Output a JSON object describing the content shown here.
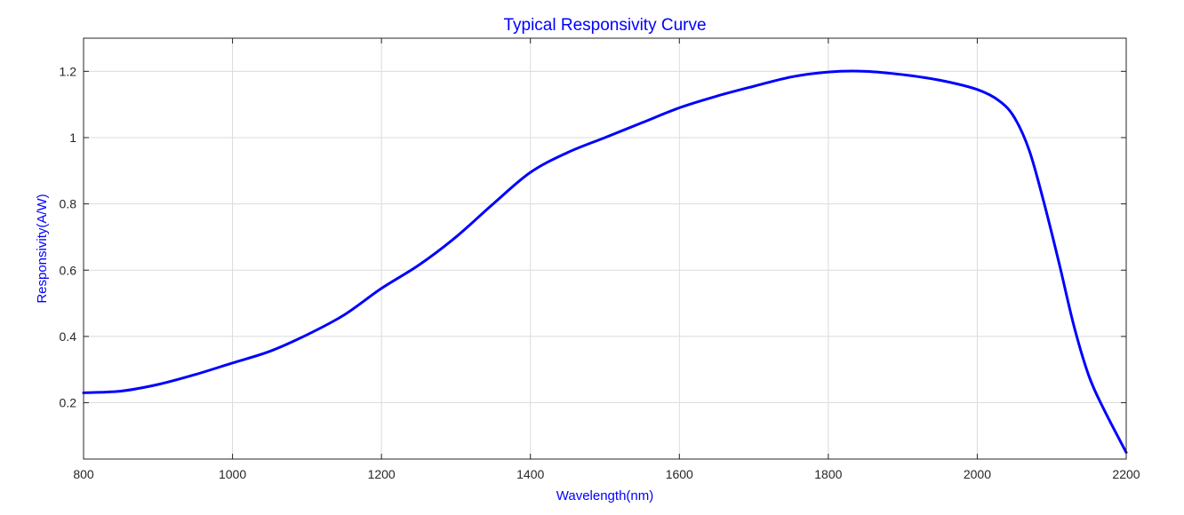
{
  "chart_data": {
    "type": "line",
    "title": "Typical Responsivity Curve",
    "xlabel": "Wavelength(nm)",
    "ylabel": "Responsivity(A/W)",
    "xlim": [
      800,
      2200
    ],
    "ylim": [
      0.03,
      1.3
    ],
    "x_ticks": [
      800,
      1000,
      1200,
      1400,
      1600,
      1800,
      2000,
      2200
    ],
    "y_ticks": [
      0.2,
      0.4,
      0.6,
      0.8,
      1,
      1.2
    ],
    "x_tick_labels": [
      "800",
      "1000",
      "1200",
      "1400",
      "1600",
      "1800",
      "2000",
      "2200"
    ],
    "y_tick_labels": [
      "0.2",
      "0.4",
      "0.6",
      "0.8",
      "1",
      "1.2"
    ],
    "grid": true,
    "colors": {
      "line": "#0000ff",
      "title": "#0000ff",
      "axis_label": "#0000ff",
      "grid": "#dcdcdc",
      "axes": "#262626"
    },
    "series": [
      {
        "x": [
          800,
          850,
          900,
          950,
          1000,
          1050,
          1100,
          1150,
          1200,
          1250,
          1300,
          1350,
          1400,
          1450,
          1500,
          1550,
          1600,
          1650,
          1700,
          1750,
          1800,
          1850,
          1900,
          1950,
          2000,
          2030,
          2050,
          2070,
          2090,
          2110,
          2130,
          2150,
          2170,
          2200
        ],
        "values": [
          0.23,
          0.235,
          0.255,
          0.285,
          0.32,
          0.355,
          0.405,
          0.465,
          0.545,
          0.615,
          0.7,
          0.8,
          0.895,
          0.955,
          1.0,
          1.045,
          1.09,
          1.125,
          1.155,
          1.183,
          1.198,
          1.2,
          1.19,
          1.173,
          1.145,
          1.11,
          1.06,
          0.96,
          0.8,
          0.62,
          0.43,
          0.28,
          0.18,
          0.05
        ]
      }
    ]
  }
}
